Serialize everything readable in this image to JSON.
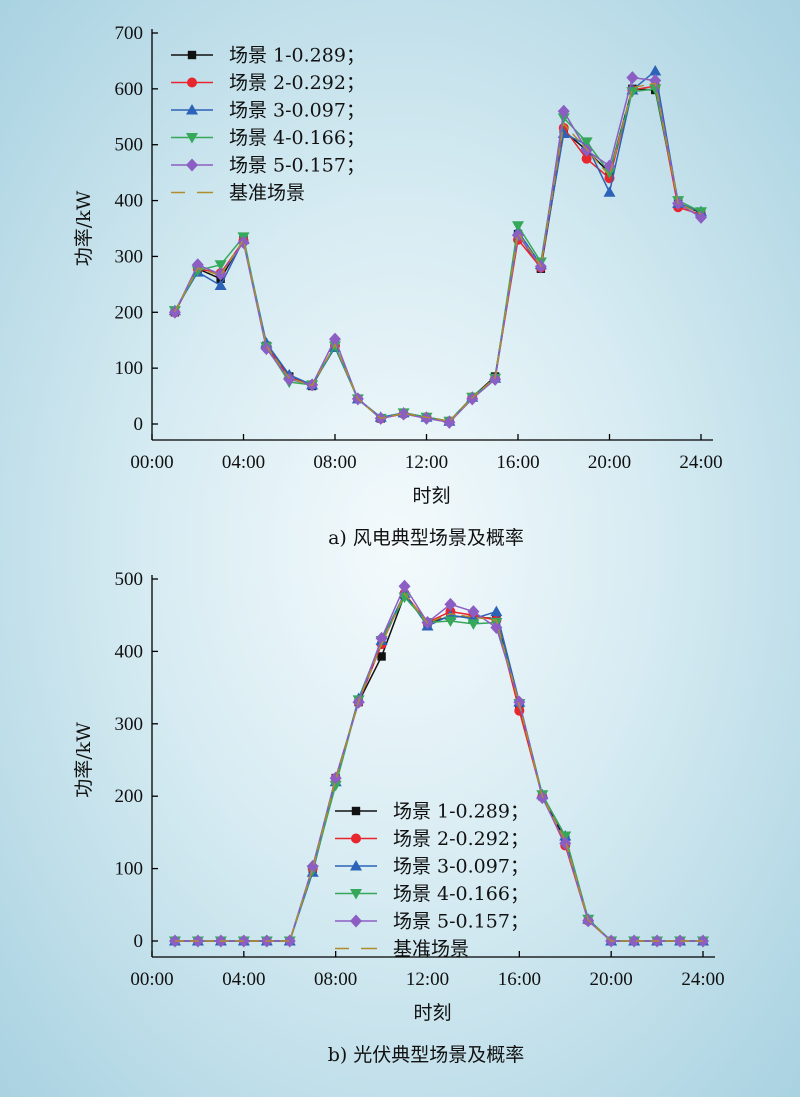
{
  "chart_data": [
    {
      "type": "line",
      "caption": "a) 风电典型场景及概率",
      "xlabel": "时刻",
      "ylabel": "功率/kW",
      "ylim": [
        0,
        700
      ],
      "yticks": [
        "0",
        "100",
        "200",
        "300",
        "400",
        "500",
        "600",
        "700"
      ],
      "xticks": [
        "00:00",
        "04:00",
        "08:00",
        "12:00",
        "16:00",
        "20:00",
        "24:00"
      ],
      "legend_position": "top-left",
      "x": [
        1,
        2,
        3,
        4,
        5,
        6,
        7,
        8,
        9,
        10,
        11,
        12,
        13,
        14,
        15,
        16,
        17,
        18,
        19,
        20,
        21,
        22,
        23,
        24
      ],
      "series": [
        {
          "name": "场景 1-0.289；",
          "color": "#111111",
          "marker": "square",
          "values": [
            200,
            278,
            260,
            330,
            140,
            85,
            68,
            140,
            45,
            10,
            20,
            12,
            5,
            48,
            85,
            340,
            278,
            525,
            490,
            450,
            600,
            598,
            395,
            378
          ]
        },
        {
          "name": "场景 2-0.292；",
          "color": "#e8262e",
          "marker": "circle",
          "values": [
            200,
            278,
            270,
            328,
            140,
            83,
            70,
            140,
            45,
            10,
            18,
            12,
            5,
            48,
            82,
            330,
            280,
            530,
            475,
            440,
            598,
            605,
            388,
            375
          ]
        },
        {
          "name": "场景 3-0.097；",
          "color": "#2c63b8",
          "marker": "triangle-up",
          "values": [
            203,
            272,
            248,
            330,
            145,
            88,
            70,
            137,
            45,
            12,
            20,
            12,
            5,
            48,
            82,
            345,
            285,
            520,
            500,
            415,
            598,
            632,
            395,
            380
          ]
        },
        {
          "name": "场景 4-0.166；",
          "color": "#35a85a",
          "marker": "triangle-down",
          "values": [
            203,
            275,
            285,
            335,
            138,
            75,
            70,
            140,
            45,
            10,
            20,
            12,
            5,
            48,
            82,
            355,
            290,
            548,
            505,
            450,
            595,
            600,
            400,
            380
          ]
        },
        {
          "name": "场景 5-0.157；",
          "color": "#8c5ec4",
          "marker": "diamond",
          "values": [
            200,
            285,
            268,
            325,
            135,
            80,
            70,
            152,
            45,
            10,
            18,
            10,
            3,
            45,
            80,
            338,
            282,
            560,
            490,
            462,
            620,
            615,
            395,
            370
          ]
        },
        {
          "name": "基准场景",
          "color": "#b08d2c",
          "marker": "dash",
          "values": [
            201,
            279,
            266,
            330,
            140,
            82,
            69,
            142,
            45,
            10,
            19,
            12,
            5,
            47,
            83,
            342,
            283,
            537,
            492,
            444,
            602,
            610,
            395,
            376
          ]
        }
      ]
    },
    {
      "type": "line",
      "caption": "b) 光伏典型场景及概率",
      "xlabel": "时刻",
      "ylabel": "功率/kW",
      "ylim": [
        0,
        500
      ],
      "yticks": [
        "0",
        "100",
        "200",
        "300",
        "400",
        "500"
      ],
      "xticks": [
        "00:00",
        "04:00",
        "08:00",
        "12:00",
        "16:00",
        "20:00",
        "24:00"
      ],
      "legend_position": "bottom-center",
      "x": [
        1,
        2,
        3,
        4,
        5,
        6,
        7,
        8,
        9,
        10,
        11,
        12,
        13,
        14,
        15,
        16,
        17,
        18,
        19,
        20,
        21,
        22,
        23,
        24
      ],
      "series": [
        {
          "name": "场景 1-0.289；",
          "color": "#111111",
          "marker": "square",
          "values": [
            0,
            0,
            0,
            0,
            0,
            0,
            100,
            225,
            330,
            393,
            478,
            440,
            448,
            448,
            445,
            325,
            200,
            140,
            30,
            0,
            0,
            0,
            0,
            0
          ]
        },
        {
          "name": "场景 2-0.292；",
          "color": "#e8262e",
          "marker": "circle",
          "values": [
            0,
            0,
            0,
            0,
            0,
            0,
            100,
            225,
            330,
            410,
            480,
            440,
            455,
            450,
            443,
            318,
            200,
            132,
            28,
            0,
            0,
            0,
            0,
            0
          ]
        },
        {
          "name": "场景 3-0.097；",
          "color": "#2c63b8",
          "marker": "triangle-up",
          "values": [
            0,
            0,
            0,
            0,
            0,
            0,
            95,
            220,
            335,
            415,
            480,
            435,
            450,
            445,
            455,
            330,
            202,
            145,
            30,
            0,
            0,
            0,
            0,
            0
          ]
        },
        {
          "name": "场景 4-0.166；",
          "color": "#35a85a",
          "marker": "triangle-down",
          "values": [
            0,
            0,
            0,
            0,
            0,
            0,
            98,
            215,
            333,
            415,
            475,
            440,
            442,
            438,
            440,
            328,
            202,
            145,
            30,
            0,
            0,
            0,
            0,
            0
          ]
        },
        {
          "name": "场景 5-0.157；",
          "color": "#8c5ec4",
          "marker": "diamond",
          "values": [
            0,
            0,
            0,
            0,
            0,
            0,
            103,
            225,
            330,
            418,
            490,
            440,
            465,
            455,
            433,
            330,
            198,
            135,
            28,
            0,
            0,
            0,
            0,
            0
          ]
        },
        {
          "name": "基准场景",
          "color": "#b08d2c",
          "marker": "dash",
          "values": [
            0,
            0,
            0,
            0,
            0,
            0,
            100,
            223,
            331,
            410,
            480,
            439,
            452,
            447,
            443,
            326,
            200,
            139,
            29,
            0,
            0,
            0,
            0,
            0
          ]
        }
      ]
    }
  ]
}
